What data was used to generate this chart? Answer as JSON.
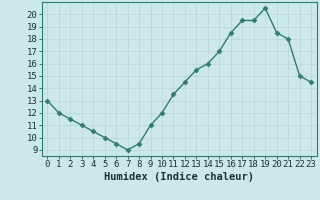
{
  "x": [
    0,
    1,
    2,
    3,
    4,
    5,
    6,
    7,
    8,
    9,
    10,
    11,
    12,
    13,
    14,
    15,
    16,
    17,
    18,
    19,
    20,
    21,
    22,
    23
  ],
  "y": [
    13,
    12,
    11.5,
    11,
    10.5,
    10,
    9.5,
    9,
    9.5,
    11,
    12,
    13.5,
    14.5,
    15.5,
    16,
    17,
    18.5,
    19.5,
    19.5,
    20.5,
    18.5,
    18,
    15,
    14.5
  ],
  "line_color": "#2e7d6e",
  "marker": "D",
  "marker_size": 2.5,
  "bg_color": "#cce8e8",
  "grid_color": "#b8d4d4",
  "xlabel": "Humidex (Indice chaleur)",
  "ylim": [
    8.5,
    21
  ],
  "xlim": [
    -0.5,
    23.5
  ],
  "yticks": [
    9,
    10,
    11,
    12,
    13,
    14,
    15,
    16,
    17,
    18,
    19,
    20
  ],
  "xtick_labels": [
    "0",
    "1",
    "2",
    "3",
    "4",
    "5",
    "6",
    "7",
    "8",
    "9",
    "10",
    "11",
    "12",
    "13",
    "14",
    "15",
    "16",
    "17",
    "18",
    "19",
    "20",
    "21",
    "22",
    "23"
  ],
  "xlabel_fontsize": 7.5,
  "tick_fontsize": 6.5,
  "line_width": 1.0
}
